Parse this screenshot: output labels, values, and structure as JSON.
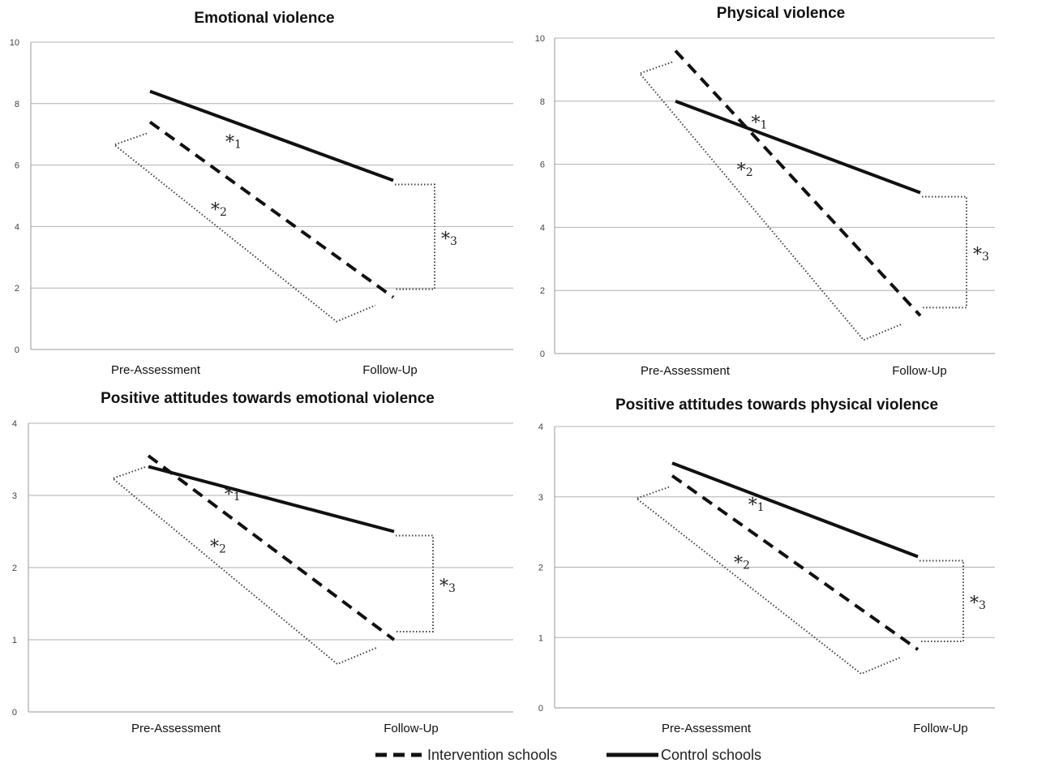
{
  "chart_data": [
    {
      "type": "line",
      "title": "Emotional violence",
      "categories": [
        "Pre-Assessment",
        "Follow-Up"
      ],
      "yticks": [
        0,
        2,
        4,
        6,
        8,
        10
      ],
      "ylim": [
        0,
        10
      ],
      "series": [
        {
          "name": "Intervention schools",
          "style": "dashed",
          "values": [
            7.4,
            1.7
          ]
        },
        {
          "name": "Control schools",
          "style": "solid",
          "values": [
            8.4,
            5.5
          ]
        }
      ],
      "annotations": [
        {
          "marker": "*",
          "label": "1"
        },
        {
          "marker": "*",
          "label": "2"
        },
        {
          "marker": "*",
          "label": "3"
        }
      ]
    },
    {
      "type": "line",
      "title": "Physical violence",
      "categories": [
        "Pre-Assessment",
        "Follow-Up"
      ],
      "yticks": [
        0,
        2,
        4,
        6,
        8,
        10
      ],
      "ylim": [
        0,
        10
      ],
      "series": [
        {
          "name": "Intervention schools",
          "style": "dashed",
          "values": [
            9.6,
            1.2
          ]
        },
        {
          "name": "Control schools",
          "style": "solid",
          "values": [
            8.0,
            5.1
          ]
        }
      ],
      "annotations": [
        {
          "marker": "*",
          "label": "1"
        },
        {
          "marker": "*",
          "label": "2"
        },
        {
          "marker": "*",
          "label": "3"
        }
      ]
    },
    {
      "type": "line",
      "title": "Positive attitudes towards emotional violence",
      "categories": [
        "Pre-Assessment",
        "Follow-Up"
      ],
      "yticks": [
        0,
        1,
        2,
        3,
        4
      ],
      "ylim": [
        0,
        4
      ],
      "series": [
        {
          "name": "Intervention schools",
          "style": "dashed",
          "values": [
            3.55,
            1.0
          ]
        },
        {
          "name": "Control schools",
          "style": "solid",
          "values": [
            3.4,
            2.5
          ]
        }
      ],
      "annotations": [
        {
          "marker": "*",
          "label": "1"
        },
        {
          "marker": "*",
          "label": "2"
        },
        {
          "marker": "*",
          "label": "3"
        }
      ]
    },
    {
      "type": "line",
      "title": "Positive attitudes towards physical  violence",
      "categories": [
        "Pre-Assessment",
        "Follow-Up"
      ],
      "yticks": [
        0,
        1,
        2,
        3,
        4
      ],
      "ylim": [
        0,
        4
      ],
      "series": [
        {
          "name": "Intervention schools",
          "style": "dashed",
          "values": [
            3.3,
            0.83
          ]
        },
        {
          "name": "Control schools",
          "style": "solid",
          "values": [
            3.48,
            2.15
          ]
        }
      ],
      "annotations": [
        {
          "marker": "*",
          "label": "1"
        },
        {
          "marker": "*",
          "label": "2"
        },
        {
          "marker": "*",
          "label": "3"
        }
      ]
    }
  ],
  "legend": {
    "placement": "bottom",
    "items": [
      {
        "label": "Intervention schools",
        "style": "dashed"
      },
      {
        "label": "Control schools",
        "style": "solid"
      }
    ]
  }
}
